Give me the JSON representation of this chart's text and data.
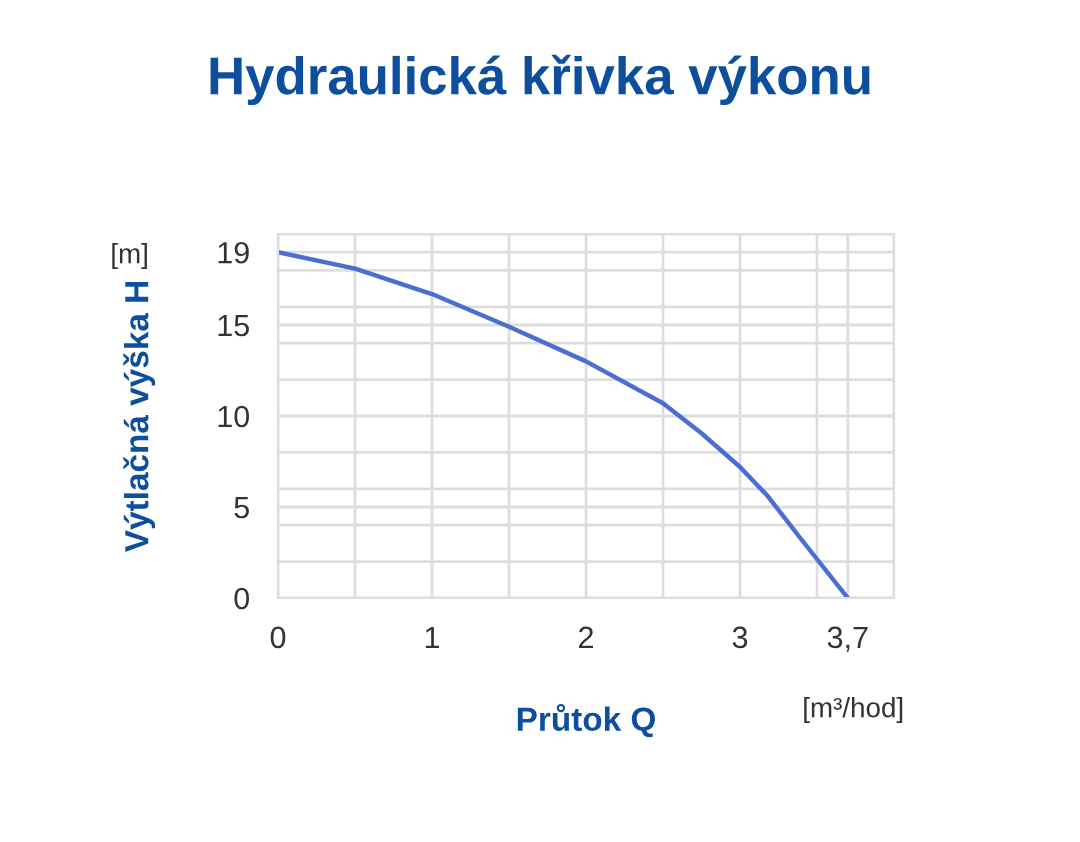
{
  "chart_data": {
    "type": "line",
    "title": "Hydraulická křivka výkonu",
    "xlabel": "Průtok Q",
    "ylabel": "Výtlačná výška H",
    "annotations": [
      "[m]",
      "[m³/hod]"
    ],
    "x": [
      0,
      0.5,
      1,
      1.5,
      2,
      2.5,
      2.75,
      3,
      3.18,
      3.4,
      3.7
    ],
    "series": [
      {
        "color": "#4a6fd0",
        "values": [
          19,
          18.1,
          16.7,
          14.9,
          13.0,
          10.7,
          9.05,
          7.2,
          5.6,
          3.2,
          0
        ]
      }
    ],
    "xlim": [
      0,
      4
    ],
    "ylim": [
      0,
      20
    ],
    "xticks": [
      0,
      {
        "value": 0.5,
        "label": null
      },
      1,
      {
        "value": 1.5,
        "label": null
      },
      2,
      {
        "value": 2.5,
        "label": null
      },
      3,
      {
        "value": 3.5,
        "label": null
      },
      {
        "value": 3.7,
        "label": "3,7"
      },
      {
        "value": 4,
        "label": null
      }
    ],
    "yticks": [
      0,
      {
        "value": 2,
        "label": null
      },
      {
        "value": 4,
        "label": null
      },
      5,
      {
        "value": 6,
        "label": null
      },
      {
        "value": 8,
        "label": null
      },
      10,
      {
        "value": 12,
        "label": null
      },
      {
        "value": 14,
        "label": null
      },
      15,
      {
        "value": 16,
        "label": null
      },
      {
        "value": 18,
        "label": null
      },
      19,
      {
        "value": 20,
        "label": null
      }
    ],
    "grid": true,
    "legend": false,
    "marker": "none",
    "line_style": "solid"
  }
}
